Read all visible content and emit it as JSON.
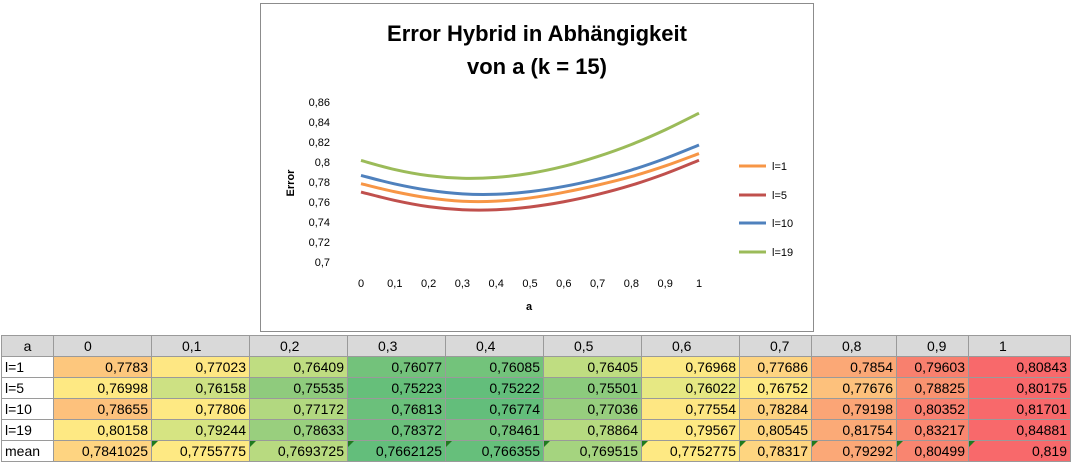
{
  "chart_data": {
    "type": "line",
    "title_lines": [
      "Error Hybrid in Abhängigkeit",
      "von a (k = 15)"
    ],
    "xlabel": "a",
    "ylabel": "Error",
    "x": [
      "0",
      "0,1",
      "0,2",
      "0,3",
      "0,4",
      "0,5",
      "0,6",
      "0,7",
      "0,8",
      "0,9",
      "1"
    ],
    "x_values": [
      0,
      0.1,
      0.2,
      0.3,
      0.4,
      0.5,
      0.6,
      0.7,
      0.8,
      0.9,
      1
    ],
    "ylim": [
      0.7,
      0.86
    ],
    "yticks": [
      "0,7",
      "0,72",
      "0,74",
      "0,76",
      "0,78",
      "0,8",
      "0,82",
      "0,84",
      "0,86"
    ],
    "ytick_values": [
      0.7,
      0.72,
      0.74,
      0.76,
      0.78,
      0.8,
      0.82,
      0.84,
      0.86
    ],
    "legend_position": "right",
    "grid": false,
    "series": [
      {
        "name": "l=1",
        "color": "#f79646",
        "values": [
          0.7783,
          0.77023,
          0.76409,
          0.76077,
          0.76085,
          0.76405,
          0.76968,
          0.77686,
          0.7854,
          0.79603,
          0.80843
        ]
      },
      {
        "name": "l=5",
        "color": "#c0504d",
        "values": [
          0.76998,
          0.76158,
          0.75535,
          0.75223,
          0.75222,
          0.75501,
          0.76022,
          0.76752,
          0.77676,
          0.78825,
          0.80175
        ]
      },
      {
        "name": "l=10",
        "color": "#4f81bd",
        "values": [
          0.78655,
          0.77806,
          0.77172,
          0.76813,
          0.76774,
          0.77036,
          0.77554,
          0.78284,
          0.79198,
          0.80352,
          0.81701
        ]
      },
      {
        "name": "l=19",
        "color": "#9bbb59",
        "values": [
          0.80158,
          0.79244,
          0.78633,
          0.78372,
          0.78461,
          0.78864,
          0.79567,
          0.80545,
          0.81754,
          0.83217,
          0.84881
        ]
      }
    ]
  },
  "table": {
    "corner": "a",
    "columns": [
      "0",
      "0,1",
      "0,2",
      "0,3",
      "0,4",
      "0,5",
      "0,6",
      "0,7",
      "0,8",
      "0,9",
      "1"
    ],
    "rows": [
      {
        "label": "l=1",
        "cells": [
          "0,7783",
          "0,77023",
          "0,76409",
          "0,76077",
          "0,76085",
          "0,76405",
          "0,76968",
          "0,77686",
          "0,7854",
          "0,79603",
          "0,80843"
        ],
        "colors": [
          "#fdc77d",
          "#fee783",
          "#bfdd81",
          "#73c27b",
          "#73c37b",
          "#bfdd81",
          "#fce984",
          "#fed481",
          "#fba876",
          "#f8806e",
          "#f8696b"
        ]
      },
      {
        "label": "l=5",
        "cells": [
          "0,76998",
          "0,76158",
          "0,75535",
          "0,75223",
          "0,75222",
          "0,75501",
          "0,76022",
          "0,76752",
          "0,77676",
          "0,78825",
          "0,80175"
        ],
        "colors": [
          "#fee983",
          "#cde183",
          "#8fcb7d",
          "#66bf7a",
          "#63be7b",
          "#8ccb7d",
          "#e6e883",
          "#feea84",
          "#fdc17c",
          "#f99370",
          "#f8696b"
        ]
      },
      {
        "label": "l=10",
        "cells": [
          "0,78655",
          "0,77806",
          "0,77172",
          "0,76813",
          "0,76774",
          "0,77036",
          "0,77554",
          "0,78284",
          "0,79198",
          "0,80352",
          "0,81701"
        ],
        "colors": [
          "#fdc17c",
          "#fee983",
          "#b2d880",
          "#6bc07b",
          "#63be7b",
          "#97ce7e",
          "#fee783",
          "#fed280",
          "#fba576",
          "#f98070",
          "#f8696b"
        ]
      },
      {
        "label": "l=19",
        "cells": [
          "0,80158",
          "0,79244",
          "0,78633",
          "0,78372",
          "0,78461",
          "0,78864",
          "0,79567",
          "0,80545",
          "0,81754",
          "0,83217",
          "0,84881"
        ],
        "colors": [
          "#fee983",
          "#d6e482",
          "#99cf7e",
          "#6bc07b",
          "#74c37c",
          "#b6da80",
          "#fee983",
          "#fed680",
          "#fbaa77",
          "#f98770",
          "#f8696b"
        ]
      }
    ],
    "mean": {
      "label": "mean",
      "cells": [
        "0,7841025",
        "0,7755775",
        "0,7693725",
        "0,7662125",
        "0,766355",
        "0,769515",
        "0,7752775",
        "0,78317",
        "0,79292",
        "0,80499",
        "0,819"
      ],
      "colors": [
        "#fed481",
        "#fee983",
        "#b8da80",
        "#63be7b",
        "#66bf7b",
        "#a5d47f",
        "#fee983",
        "#fed580",
        "#fba877",
        "#f98570",
        "#f8696b"
      ]
    }
  }
}
